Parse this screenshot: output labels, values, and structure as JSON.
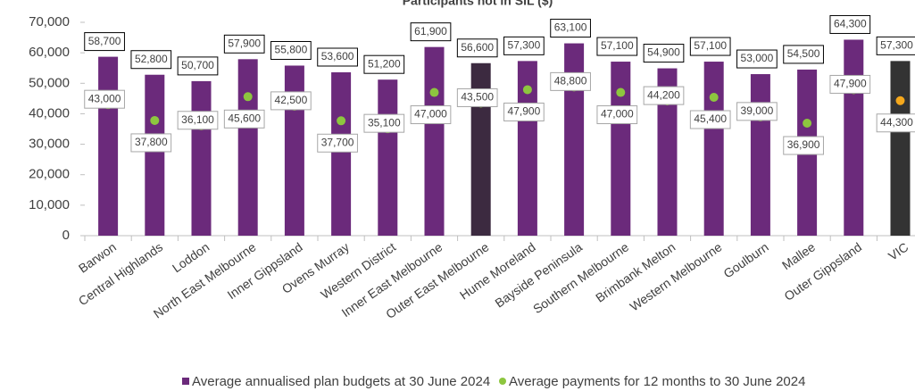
{
  "chart_data": {
    "type": "bar_dot",
    "title": "Participants not in SIL ($)",
    "categories": [
      "Barwon",
      "Central Highlands",
      "Loddon",
      "North East Melbourne",
      "Inner Gippsland",
      "Ovens Murray",
      "Western District",
      "Inner East Melbourne",
      "Outer East Melbourne",
      "Hume Moreland",
      "Bayside Peninsula",
      "Southern Melbourne",
      "Brimbank Melton",
      "Western Melbourne",
      "Goulburn",
      "Mallee",
      "Outer Gippsland",
      "VIC"
    ],
    "series": [
      {
        "name": "Average annualised plan budgets at 30 June 2024",
        "color": "#6b2a7b",
        "colors": [
          "#6b2a7b",
          "#6b2a7b",
          "#6b2a7b",
          "#6b2a7b",
          "#6b2a7b",
          "#6b2a7b",
          "#6b2a7b",
          "#6b2a7b",
          "#3c2a40",
          "#6b2a7b",
          "#6b2a7b",
          "#6b2a7b",
          "#6b2a7b",
          "#6b2a7b",
          "#6b2a7b",
          "#6b2a7b",
          "#6b2a7b",
          "#333333"
        ],
        "values": [
          58700,
          52800,
          50700,
          57900,
          55800,
          53600,
          51200,
          61900,
          56600,
          57300,
          63100,
          57100,
          54900,
          57100,
          53000,
          54500,
          64300,
          57300
        ],
        "value_labels": [
          "58,700",
          "52,800",
          "50,700",
          "57,900",
          "55,800",
          "53,600",
          "51,200",
          "61,900",
          "56,600",
          "57,300",
          "63,100",
          "57,100",
          "54,900",
          "57,100",
          "53,000",
          "54,500",
          "64,300",
          "57,300"
        ]
      },
      {
        "name": "Average payments for 12 months to 30 June 2024",
        "color": "#8dc63f",
        "colors": [
          "#8dc63f",
          "#8dc63f",
          "#8dc63f",
          "#8dc63f",
          "#8dc63f",
          "#8dc63f",
          "#8dc63f",
          "#8dc63f",
          "#8dc63f",
          "#8dc63f",
          "#8dc63f",
          "#8dc63f",
          "#8dc63f",
          "#8dc63f",
          "#8dc63f",
          "#8dc63f",
          "#8dc63f",
          "#f5a81c"
        ],
        "values": [
          43000,
          37800,
          36100,
          45600,
          42500,
          37700,
          35100,
          47000,
          43500,
          47900,
          48800,
          47000,
          44200,
          45400,
          39000,
          36900,
          47900,
          44300
        ],
        "value_labels": [
          "43,000",
          "37,800",
          "36,100",
          "45,600",
          "42,500",
          "37,700",
          "35,100",
          "47,000",
          "43,500",
          "47,900",
          "48,800",
          "47,000",
          "44,200",
          "45,400",
          "39,000",
          "36,900",
          "47,900",
          "44,300"
        ]
      }
    ],
    "ylim": [
      0,
      70000
    ],
    "yticks": [
      0,
      {
        "value": 10000,
        "label": "10,000"
      },
      {
        "value": 20000,
        "label": "20,000"
      },
      {
        "value": 30000,
        "label": "30,000"
      },
      {
        "value": 40000,
        "label": "40,000"
      },
      {
        "value": 50000,
        "label": "50,000"
      },
      {
        "value": 60000,
        "label": "60,000"
      },
      {
        "value": 70000,
        "label": "70,000"
      }
    ]
  }
}
